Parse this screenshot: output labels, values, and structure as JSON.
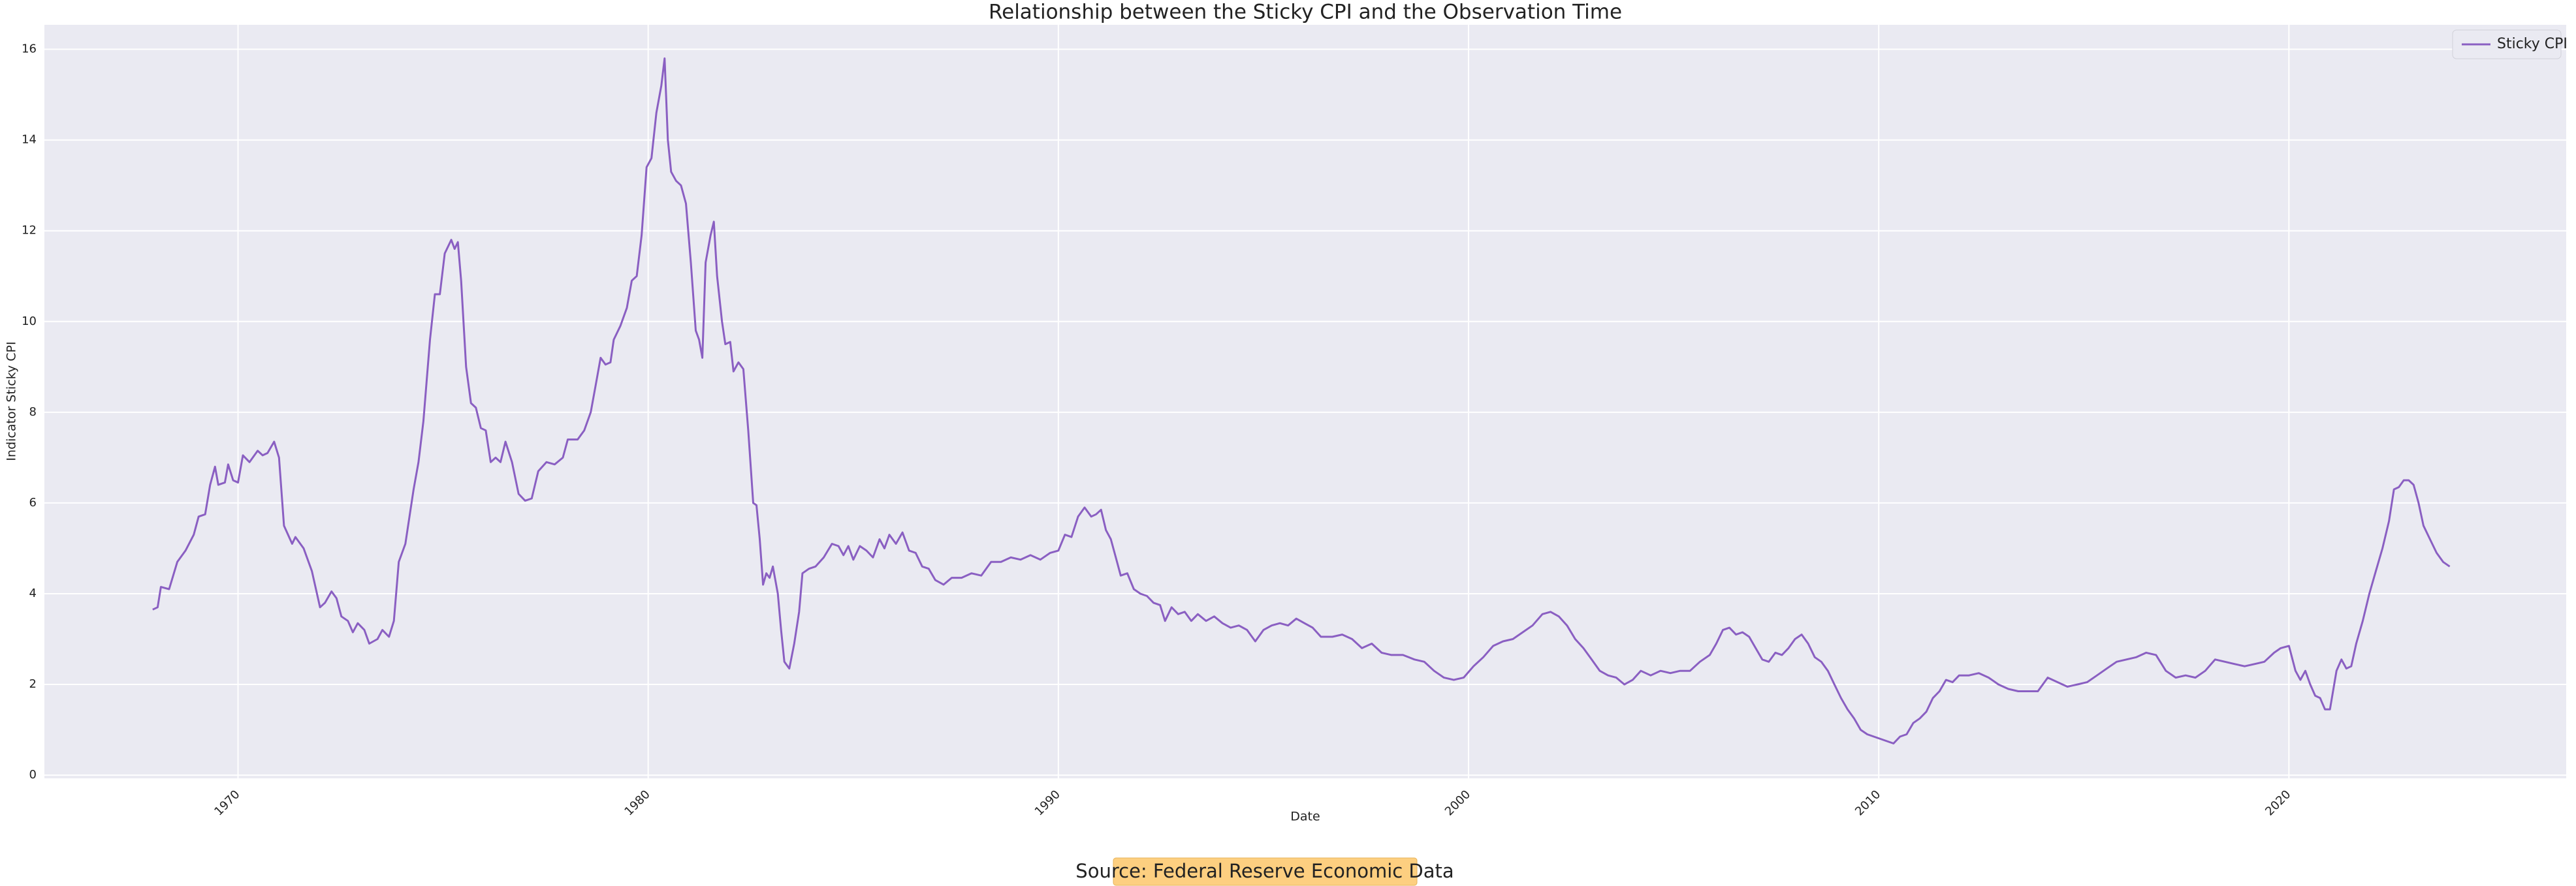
{
  "chart_data": {
    "type": "line",
    "title": "Relationship between the Sticky CPI and the Observation Time",
    "xlabel": "Date",
    "ylabel": "Indicator Sticky CPI",
    "source": "Source: Federal Reserve Economic Data",
    "legend": "upper right",
    "grid": true,
    "xlim": [
      1965.28,
      2026.76
    ],
    "ylim": [
      -0.07,
      16.54
    ],
    "xticks": [
      1970,
      1980,
      1990,
      2000,
      2010,
      2020
    ],
    "yticks": [
      0,
      2,
      4,
      6,
      8,
      10,
      12,
      14,
      16
    ],
    "x": [
      1967.92,
      1968.04,
      1968.12,
      1968.32,
      1968.52,
      1968.72,
      1968.92,
      1969.04,
      1969.2,
      1969.32,
      1969.44,
      1969.52,
      1969.68,
      1969.76,
      1969.88,
      1970.0,
      1970.12,
      1970.28,
      1970.48,
      1970.6,
      1970.72,
      1970.88,
      1971.0,
      1971.12,
      1971.32,
      1971.4,
      1971.6,
      1971.8,
      1972.0,
      1972.12,
      1972.28,
      1972.4,
      1972.52,
      1972.68,
      1972.8,
      1972.92,
      1973.08,
      1973.2,
      1973.4,
      1973.52,
      1973.68,
      1973.8,
      1973.92,
      1974.08,
      1974.28,
      1974.4,
      1974.52,
      1974.68,
      1974.8,
      1974.92,
      1975.04,
      1975.2,
      1975.28,
      1975.36,
      1975.44,
      1975.56,
      1975.68,
      1975.8,
      1975.92,
      1976.04,
      1976.16,
      1976.28,
      1976.4,
      1976.52,
      1976.68,
      1976.84,
      1977.0,
      1977.16,
      1977.32,
      1977.52,
      1977.72,
      1977.92,
      1978.04,
      1978.28,
      1978.44,
      1978.6,
      1978.72,
      1978.84,
      1978.96,
      1979.08,
      1979.16,
      1979.32,
      1979.48,
      1979.6,
      1979.72,
      1979.84,
      1979.96,
      1980.08,
      1980.2,
      1980.32,
      1980.4,
      1980.48,
      1980.56,
      1980.68,
      1980.8,
      1980.92,
      1981.04,
      1981.16,
      1981.24,
      1981.32,
      1981.4,
      1981.52,
      1981.6,
      1981.68,
      1981.8,
      1981.88,
      1982.0,
      1982.08,
      1982.2,
      1982.32,
      1982.44,
      1982.56,
      1982.64,
      1982.72,
      1982.8,
      1982.88,
      1982.96,
      1983.04,
      1983.16,
      1983.24,
      1983.32,
      1983.44,
      1983.56,
      1983.68,
      1983.76,
      1983.92,
      1984.08,
      1984.28,
      1984.48,
      1984.64,
      1984.76,
      1984.88,
      1985.0,
      1985.16,
      1985.32,
      1985.48,
      1985.64,
      1985.76,
      1985.88,
      1986.04,
      1986.2,
      1986.36,
      1986.52,
      1986.68,
      1986.84,
      1987.0,
      1987.2,
      1987.4,
      1987.64,
      1987.88,
      1988.12,
      1988.36,
      1988.6,
      1988.84,
      1989.08,
      1989.32,
      1989.56,
      1989.8,
      1990.0,
      1990.16,
      1990.32,
      1990.48,
      1990.64,
      1990.8,
      1990.92,
      1991.04,
      1991.16,
      1991.28,
      1991.4,
      1991.52,
      1991.68,
      1991.84,
      1992.0,
      1992.16,
      1992.32,
      1992.48,
      1992.6,
      1992.76,
      1992.92,
      1993.08,
      1993.24,
      1993.4,
      1993.6,
      1993.8,
      1994.0,
      1994.2,
      1994.4,
      1994.6,
      1994.8,
      1995.0,
      1995.2,
      1995.4,
      1995.6,
      1995.8,
      1996.0,
      1996.2,
      1996.4,
      1996.68,
      1996.92,
      1997.16,
      1997.4,
      1997.64,
      1997.88,
      1998.12,
      1998.4,
      1998.68,
      1998.92,
      1999.16,
      1999.4,
      1999.64,
      1999.88,
      2000.12,
      2000.36,
      2000.6,
      2000.84,
      2001.08,
      2001.32,
      2001.56,
      2001.8,
      2002.0,
      2002.2,
      2002.4,
      2002.6,
      2002.8,
      2003.0,
      2003.2,
      2003.4,
      2003.6,
      2003.8,
      2004.0,
      2004.2,
      2004.44,
      2004.68,
      2004.92,
      2005.16,
      2005.4,
      2005.64,
      2005.88,
      2006.04,
      2006.2,
      2006.36,
      2006.52,
      2006.68,
      2006.84,
      2007.0,
      2007.16,
      2007.32,
      2007.48,
      2007.64,
      2007.8,
      2007.96,
      2008.12,
      2008.28,
      2008.44,
      2008.6,
      2008.76,
      2008.92,
      2009.08,
      2009.24,
      2009.4,
      2009.56,
      2009.72,
      2009.88,
      2010.04,
      2010.2,
      2010.36,
      2010.52,
      2010.68,
      2010.84,
      2011.0,
      2011.16,
      2011.32,
      2011.48,
      2011.64,
      2011.8,
      2011.96,
      2012.2,
      2012.44,
      2012.68,
      2012.92,
      2013.16,
      2013.4,
      2013.64,
      2013.88,
      2014.12,
      2014.36,
      2014.6,
      2014.84,
      2015.08,
      2015.32,
      2015.56,
      2015.8,
      2016.04,
      2016.28,
      2016.52,
      2016.76,
      2017.0,
      2017.24,
      2017.48,
      2017.72,
      2017.96,
      2018.2,
      2018.44,
      2018.68,
      2018.92,
      2019.16,
      2019.4,
      2019.64,
      2019.8,
      2020.0,
      2020.16,
      2020.28,
      2020.4,
      2020.52,
      2020.64,
      2020.76,
      2020.88,
      2021.0,
      2021.16,
      2021.28,
      2021.4,
      2021.52,
      2021.64,
      2021.8,
      2021.96,
      2022.12,
      2022.28,
      2022.44,
      2022.56,
      2022.68,
      2022.8,
      2022.92,
      2023.04,
      2023.16,
      2023.28,
      2023.44,
      2023.6,
      2023.76,
      2023.92
    ],
    "series": [
      {
        "name": "Sticky CPI",
        "color": "#8a5fc2",
        "values": [
          3.65,
          3.7,
          4.15,
          4.1,
          4.7,
          4.95,
          5.3,
          5.7,
          5.75,
          6.4,
          6.8,
          6.4,
          6.45,
          6.85,
          6.5,
          6.45,
          7.05,
          6.9,
          7.15,
          7.05,
          7.1,
          7.35,
          7.0,
          5.5,
          5.1,
          5.25,
          5.0,
          4.5,
          3.7,
          3.8,
          4.05,
          3.9,
          3.5,
          3.4,
          3.15,
          3.35,
          3.2,
          2.9,
          3.0,
          3.2,
          3.05,
          3.4,
          4.7,
          5.1,
          6.3,
          6.9,
          7.8,
          9.6,
          10.6,
          10.6,
          11.5,
          11.8,
          11.6,
          11.75,
          10.9,
          9.0,
          8.2,
          8.1,
          7.65,
          7.6,
          6.9,
          7.0,
          6.9,
          7.35,
          6.9,
          6.2,
          6.05,
          6.1,
          6.7,
          6.9,
          6.85,
          7.0,
          7.4,
          7.4,
          7.6,
          8.0,
          8.6,
          9.2,
          9.05,
          9.1,
          9.6,
          9.9,
          10.3,
          10.9,
          11.0,
          11.9,
          13.4,
          13.6,
          14.6,
          15.2,
          15.8,
          14.0,
          13.3,
          13.1,
          13.0,
          12.6,
          11.3,
          9.8,
          9.6,
          9.2,
          11.3,
          11.9,
          12.2,
          11.0,
          10.0,
          9.5,
          9.55,
          8.9,
          9.1,
          8.95,
          7.6,
          6.0,
          5.95,
          5.2,
          4.2,
          4.45,
          4.35,
          4.6,
          4.0,
          3.2,
          2.5,
          2.35,
          2.9,
          3.6,
          4.45,
          4.55,
          4.6,
          4.8,
          5.1,
          5.05,
          4.85,
          5.05,
          4.75,
          5.05,
          4.95,
          4.8,
          5.2,
          5.0,
          5.3,
          5.1,
          5.35,
          4.95,
          4.9,
          4.6,
          4.55,
          4.3,
          4.2,
          4.35,
          4.35,
          4.45,
          4.4,
          4.7,
          4.7,
          4.8,
          4.75,
          4.85,
          4.75,
          4.9,
          4.95,
          5.3,
          5.25,
          5.7,
          5.9,
          5.7,
          5.75,
          5.85,
          5.4,
          5.2,
          4.8,
          4.4,
          4.45,
          4.1,
          4.0,
          3.95,
          3.8,
          3.75,
          3.4,
          3.7,
          3.55,
          3.6,
          3.4,
          3.55,
          3.4,
          3.5,
          3.35,
          3.25,
          3.3,
          3.2,
          2.95,
          3.2,
          3.3,
          3.35,
          3.3,
          3.45,
          3.35,
          3.25,
          3.05,
          3.05,
          3.1,
          3.0,
          2.8,
          2.9,
          2.7,
          2.65,
          2.65,
          2.55,
          2.5,
          2.3,
          2.15,
          2.1,
          2.15,
          2.4,
          2.6,
          2.85,
          2.95,
          3.0,
          3.15,
          3.3,
          3.55,
          3.6,
          3.5,
          3.3,
          3.0,
          2.8,
          2.55,
          2.3,
          2.2,
          2.15,
          2.0,
          2.1,
          2.3,
          2.2,
          2.3,
          2.25,
          2.3,
          2.3,
          2.5,
          2.65,
          2.9,
          3.2,
          3.25,
          3.1,
          3.15,
          3.05,
          2.8,
          2.55,
          2.5,
          2.7,
          2.65,
          2.8,
          3.0,
          3.1,
          2.9,
          2.6,
          2.5,
          2.3,
          2.0,
          1.7,
          1.45,
          1.25,
          1.0,
          0.9,
          0.85,
          0.8,
          0.75,
          0.7,
          0.85,
          0.9,
          1.15,
          1.25,
          1.4,
          1.7,
          1.85,
          2.1,
          2.05,
          2.2,
          2.2,
          2.25,
          2.15,
          2.0,
          1.9,
          1.85,
          1.85,
          1.85,
          2.15,
          2.05,
          1.95,
          2.0,
          2.05,
          2.2,
          2.35,
          2.5,
          2.55,
          2.6,
          2.7,
          2.65,
          2.3,
          2.15,
          2.2,
          2.15,
          2.3,
          2.55,
          2.5,
          2.45,
          2.4,
          2.45,
          2.5,
          2.7,
          2.8,
          2.85,
          2.3,
          2.1,
          2.3,
          2.0,
          1.75,
          1.7,
          1.45,
          1.45,
          2.3,
          2.55,
          2.35,
          2.4,
          2.9,
          3.4,
          4.0,
          4.5,
          5.0,
          5.6,
          6.3,
          6.35,
          6.5,
          6.5,
          6.4,
          6.0,
          5.5,
          5.2,
          4.9,
          4.7,
          4.6
        ]
      }
    ]
  }
}
